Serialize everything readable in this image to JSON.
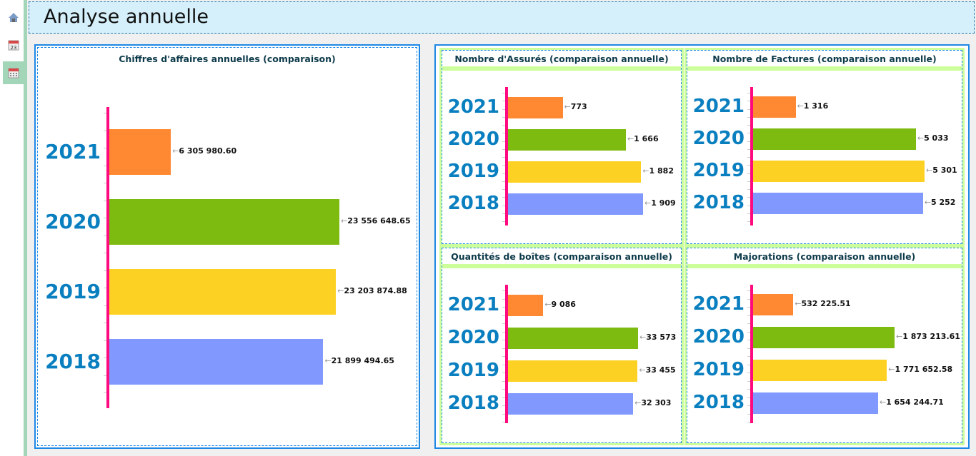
{
  "header": {
    "title": "Analyse annuelle"
  },
  "sidebar": {
    "items": [
      {
        "icon": "home-icon"
      },
      {
        "icon": "calendar-day-icon",
        "label": "23"
      },
      {
        "icon": "calendar-grid-icon",
        "active": true
      }
    ]
  },
  "colors": {
    "2021": "#ff8833",
    "2020": "#7dbb10",
    "2019": "#fcd123",
    "2018": "#8199ff",
    "axis": "#ff0b7f",
    "year": "#0a7fc0"
  },
  "charts": [
    {
      "title": "Chiffres d'affaires annuelles (comparaison)",
      "years": [
        "2021",
        "2020",
        "2019",
        "2018"
      ],
      "values": [
        6305980.6,
        23556648.65,
        23203874.88,
        21899494.65
      ],
      "labels": [
        "6 305 980.60",
        "23 556 648.65",
        "23 203 874.88",
        "21 899 494.65"
      ]
    },
    {
      "title": "Nombre d'Assurés (comparaison annuelle)",
      "years": [
        "2021",
        "2020",
        "2019",
        "2018"
      ],
      "values": [
        773,
        1666,
        1882,
        1909
      ],
      "labels": [
        "773",
        "1 666",
        "1 882",
        "1 909"
      ]
    },
    {
      "title": "Nombre de Factures (comparaison annuelle)",
      "years": [
        "2021",
        "2020",
        "2019",
        "2018"
      ],
      "values": [
        1316,
        5033,
        5301,
        5252
      ],
      "labels": [
        "1 316",
        "5 033",
        "5 301",
        "5 252"
      ]
    },
    {
      "title": "Quantités de boîtes (comparaison annuelle)",
      "years": [
        "2021",
        "2020",
        "2019",
        "2018"
      ],
      "values": [
        9086,
        33573,
        33455,
        32303
      ],
      "labels": [
        "9 086",
        "33 573",
        "33 455",
        "32 303"
      ]
    },
    {
      "title": "Majorations (comparaison annuelle)",
      "years": [
        "2021",
        "2020",
        "2019",
        "2018"
      ],
      "values": [
        532225.51,
        1873213.61,
        1771652.58,
        1654244.71
      ],
      "labels": [
        "532 225.51",
        "1 873 213.61",
        "1 771 652.58",
        "1 654 244.71"
      ]
    }
  ]
}
